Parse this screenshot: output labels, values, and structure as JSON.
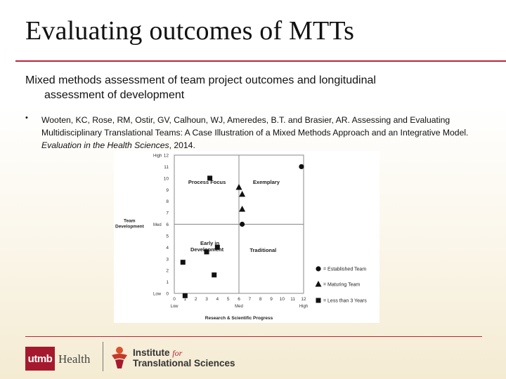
{
  "slide": {
    "title": "Evaluating outcomes of MTTs",
    "lead_line1": "Mixed methods assessment of team project outcomes and longitudinal",
    "lead_line2": "assessment of development",
    "bullet_char": "•",
    "citation_plain": "Wooten, KC, Rose, RM, Ostir, GV, Calhoun, WJ, Ameredes, B.T. and Brasier, AR.  Assessing and Evaluating Multidisciplinary Translational Teams: A Case Illustration of a Mixed Methods Approach and an Integrative Model.  ",
    "citation_journal": "Evaluation in the Health Sciences",
    "citation_year": ", 2014."
  },
  "footer": {
    "utmb_label": "utmb",
    "health_label": "Health",
    "institute_line1": "Institute",
    "institute_for": "for",
    "institute_line2": "Translational Sciences"
  },
  "chart_data": {
    "type": "scatter",
    "xlabel": "Research & Scientific Progress",
    "ylabel": "Team Development",
    "xlim": [
      0,
      12
    ],
    "ylim": [
      0,
      12
    ],
    "x_ticks": [
      "0",
      "1",
      "2",
      "3",
      "4",
      "5",
      "6",
      "7",
      "8",
      "9",
      "10",
      "11",
      "12"
    ],
    "y_ticks": [
      "0",
      "1",
      "2",
      "3",
      "4",
      "5",
      "6",
      "7",
      "8",
      "9",
      "10",
      "11",
      "12"
    ],
    "x_level_labels": [
      "Low",
      "Med",
      "High"
    ],
    "y_level_labels": [
      "Low",
      "Med",
      "High"
    ],
    "quadrants": [
      "Process Focus",
      "Exemplary",
      "Early in Development",
      "Traditional"
    ],
    "series": [
      {
        "name": "= Established Team",
        "marker": "circle",
        "points": [
          {
            "x": 11.8,
            "y": 11
          },
          {
            "x": 6.3,
            "y": 6
          }
        ]
      },
      {
        "name": "= Maturing Team",
        "marker": "triangle",
        "points": [
          {
            "x": 6.0,
            "y": 9.2
          },
          {
            "x": 6.3,
            "y": 8.6
          },
          {
            "x": 6.3,
            "y": 7.3
          }
        ]
      },
      {
        "name": "= Less than 3 Years",
        "marker": "square",
        "points": [
          {
            "x": 3.3,
            "y": 10.0
          },
          {
            "x": 4.0,
            "y": 4.0
          },
          {
            "x": 3.0,
            "y": 3.6
          },
          {
            "x": 0.8,
            "y": 2.7
          },
          {
            "x": 3.7,
            "y": 1.6
          },
          {
            "x": 1.0,
            "y": -0.2
          }
        ]
      }
    ]
  }
}
